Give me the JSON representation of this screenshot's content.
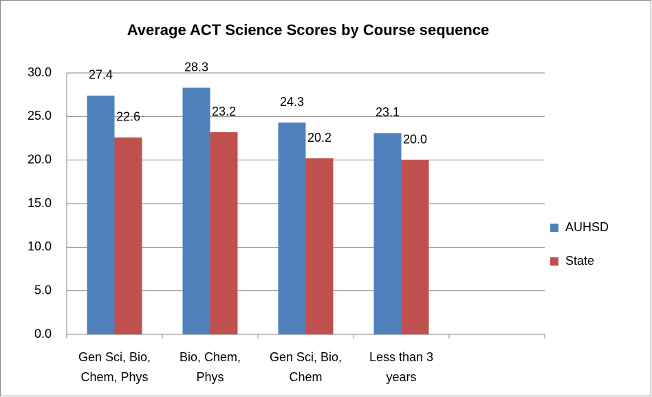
{
  "chart_data": {
    "type": "bar",
    "title": "Average ACT Science Scores by Course sequence",
    "categories": [
      "Gen Sci, Bio, Chem, Phys",
      "Bio, Chem, Phys",
      "Gen Sci, Bio, Chem",
      "Less than 3 years",
      null
    ],
    "series": [
      {
        "name": "AUHSD",
        "color": "#4f81bd",
        "values": [
          27.4,
          28.3,
          24.3,
          23.1,
          null
        ],
        "value_labels": [
          "27.4",
          "28.3",
          "24.3",
          "23.1",
          null
        ]
      },
      {
        "name": "State",
        "color": "#c0504d",
        "values": [
          22.6,
          23.2,
          20.2,
          20.0,
          null
        ],
        "value_labels": [
          "22.6",
          "23.2",
          "20.2",
          "20.0",
          null
        ]
      }
    ],
    "ylim": [
      0,
      30
    ],
    "yticks": [
      {
        "value": 0,
        "label": "0.0"
      },
      {
        "value": 5,
        "label": "5.0"
      },
      {
        "value": 10,
        "label": "10.0"
      },
      {
        "value": 15,
        "label": "15.0"
      },
      {
        "value": 20,
        "label": "20.0"
      },
      {
        "value": 25,
        "label": "25.0"
      },
      {
        "value": 30,
        "label": "30.0"
      }
    ],
    "grid": true,
    "legend": "right"
  }
}
